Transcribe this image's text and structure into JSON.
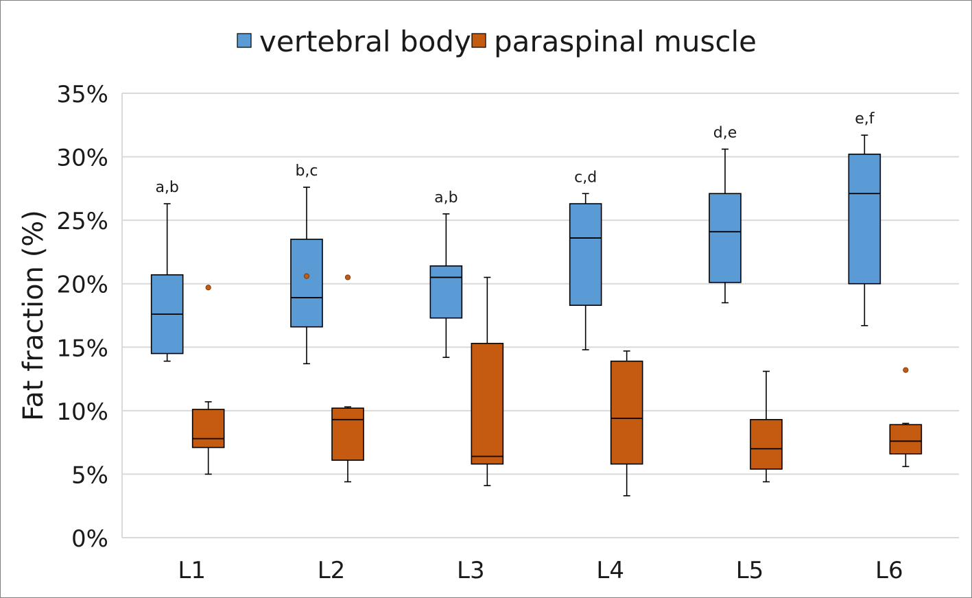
{
  "chart_data": {
    "type": "boxplot",
    "title": "",
    "ylabel": "Fat fraction (%)",
    "xlabel": "",
    "ylim": [
      0,
      35
    ],
    "yticks": [
      0,
      5,
      10,
      15,
      20,
      25,
      30,
      35
    ],
    "yticklabels": [
      "0%",
      "5%",
      "10%",
      "15%",
      "20%",
      "25%",
      "30%",
      "35%"
    ],
    "grid": true,
    "legend_position": "top-center",
    "categories": [
      "L1",
      "L2",
      "L3",
      "L4",
      "L5",
      "L6"
    ],
    "annotations": [
      "a,b",
      "b,c",
      "a,b",
      "c,d",
      "d,e",
      "e,f"
    ],
    "series": [
      {
        "name": "vertebral body",
        "color": "#5b9bd5",
        "boxes": [
          {
            "min": 13.9,
            "q1": 14.5,
            "median": 17.6,
            "q3": 20.7,
            "max": 26.3,
            "outliers": []
          },
          {
            "min": 13.7,
            "q1": 16.6,
            "median": 18.9,
            "q3": 23.5,
            "max": 27.6,
            "outliers": [
              20.6
            ]
          },
          {
            "min": 14.2,
            "q1": 17.3,
            "median": 20.5,
            "q3": 21.4,
            "max": 25.5,
            "outliers": []
          },
          {
            "min": 14.8,
            "q1": 18.3,
            "median": 23.6,
            "q3": 26.3,
            "max": 27.1,
            "outliers": []
          },
          {
            "min": 18.5,
            "q1": 20.1,
            "median": 24.1,
            "q3": 27.1,
            "max": 30.6,
            "outliers": []
          },
          {
            "min": 16.7,
            "q1": 20.0,
            "median": 27.1,
            "q3": 30.2,
            "max": 31.7,
            "outliers": []
          }
        ]
      },
      {
        "name": "paraspinal muscle",
        "color": "#c55a11",
        "boxes": [
          {
            "min": 5.0,
            "q1": 7.1,
            "median": 7.8,
            "q3": 10.1,
            "max": 10.7,
            "outliers": [
              19.7
            ]
          },
          {
            "min": 4.4,
            "q1": 6.1,
            "median": 9.3,
            "q3": 10.2,
            "max": 10.3,
            "outliers": [
              20.5
            ]
          },
          {
            "min": 4.1,
            "q1": 5.8,
            "median": 6.4,
            "q3": 15.3,
            "max": 20.5,
            "outliers": []
          },
          {
            "min": 3.3,
            "q1": 5.8,
            "median": 9.4,
            "q3": 13.9,
            "max": 14.7,
            "outliers": []
          },
          {
            "min": 4.4,
            "q1": 5.4,
            "median": 7.0,
            "q3": 9.3,
            "max": 13.1,
            "outliers": []
          },
          {
            "min": 5.6,
            "q1": 6.6,
            "median": 7.6,
            "q3": 8.9,
            "max": 9.0,
            "outliers": [
              13.2
            ]
          }
        ]
      }
    ]
  }
}
